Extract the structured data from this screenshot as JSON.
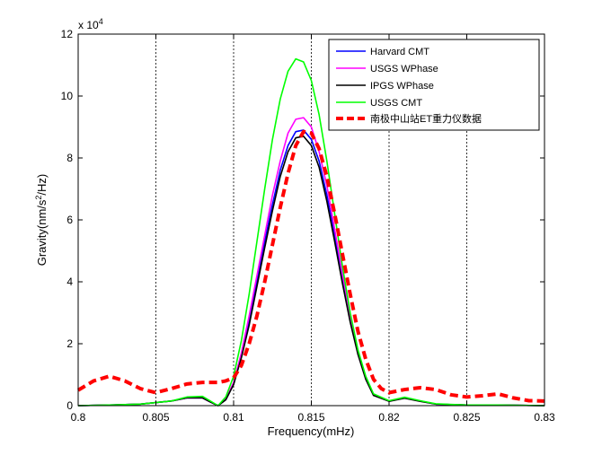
{
  "chart_data": {
    "type": "line",
    "title": "",
    "xlabel": "Frequency(mHz)",
    "ylabel_main": "Gravity(nm/s",
    "ylabel_sup": "2",
    "ylabel_tail": "/Hz)",
    "xlim": [
      0.8,
      0.83
    ],
    "ylim": [
      0,
      120000
    ],
    "x_ticks": [
      0.8,
      0.805,
      0.81,
      0.815,
      0.82,
      0.825,
      0.83
    ],
    "x_tick_labels": [
      "0.8",
      "0.805",
      "0.81",
      "0.815",
      "0.82",
      "0.825",
      "0.83"
    ],
    "y_ticks": [
      0,
      20000,
      40000,
      60000,
      80000,
      100000,
      120000
    ],
    "y_tick_labels": [
      "0",
      "2",
      "4",
      "6",
      "8",
      "10",
      "12"
    ],
    "y_multiplier_base": "x 10",
    "y_multiplier_exp": "4",
    "vertical_dotted_lines": [
      0.805,
      0.81,
      0.815,
      0.82,
      0.825
    ],
    "legend_position": "top-right",
    "series": [
      {
        "name": "Harvard CMT",
        "color": "#0000ff",
        "style": "solid",
        "x": [
          0.8,
          0.802,
          0.804,
          0.806,
          0.807,
          0.808,
          0.8085,
          0.809,
          0.8095,
          0.81,
          0.8105,
          0.811,
          0.8115,
          0.812,
          0.8125,
          0.813,
          0.8135,
          0.814,
          0.8145,
          0.815,
          0.8155,
          0.816,
          0.8165,
          0.817,
          0.8175,
          0.818,
          0.8185,
          0.819,
          0.82,
          0.821,
          0.822,
          0.823,
          0.825,
          0.827,
          0.83
        ],
        "y": [
          0,
          200,
          500,
          1500,
          2500,
          2500,
          1200,
          0,
          2000,
          7000,
          16000,
          27000,
          40000,
          53000,
          65000,
          76000,
          84000,
          88500,
          89000,
          86000,
          79000,
          68000,
          55000,
          41000,
          28000,
          17000,
          9000,
          3500,
          1500,
          2500,
          1500,
          500,
          200,
          200,
          0
        ]
      },
      {
        "name": "USGS WPhase",
        "color": "#ff00ff",
        "style": "solid",
        "x": [
          0.8,
          0.802,
          0.804,
          0.806,
          0.807,
          0.808,
          0.8085,
          0.809,
          0.8095,
          0.81,
          0.8105,
          0.811,
          0.8115,
          0.812,
          0.8125,
          0.813,
          0.8135,
          0.814,
          0.8145,
          0.815,
          0.8155,
          0.816,
          0.8165,
          0.817,
          0.8175,
          0.818,
          0.8185,
          0.819,
          0.82,
          0.821,
          0.822,
          0.823,
          0.825,
          0.827,
          0.83
        ],
        "y": [
          0,
          200,
          500,
          1500,
          2500,
          2500,
          1200,
          0,
          2100,
          7500,
          17000,
          29000,
          42000,
          55000,
          68000,
          79000,
          88000,
          92500,
          93000,
          90000,
          82000,
          71000,
          57000,
          42500,
          29000,
          17500,
          9000,
          3500,
          1500,
          2500,
          1500,
          500,
          200,
          200,
          0
        ]
      },
      {
        "name": "IPGS WPhase",
        "color": "#000000",
        "style": "solid",
        "x": [
          0.8,
          0.802,
          0.804,
          0.806,
          0.807,
          0.808,
          0.8085,
          0.809,
          0.8095,
          0.81,
          0.8105,
          0.811,
          0.8115,
          0.812,
          0.8125,
          0.813,
          0.8135,
          0.814,
          0.8145,
          0.815,
          0.8155,
          0.816,
          0.8165,
          0.817,
          0.8175,
          0.818,
          0.8185,
          0.819,
          0.82,
          0.821,
          0.822,
          0.823,
          0.825,
          0.827,
          0.83
        ],
        "y": [
          0,
          200,
          500,
          1500,
          2500,
          2500,
          1200,
          0,
          1900,
          6800,
          15500,
          26000,
          38500,
          51000,
          63000,
          74000,
          82000,
          86500,
          87000,
          84000,
          77000,
          66000,
          53000,
          39500,
          27000,
          16500,
          8500,
          3300,
          1400,
          2400,
          1400,
          500,
          200,
          200,
          0
        ]
      },
      {
        "name": "USGS CMT",
        "color": "#00ff00",
        "style": "solid",
        "x": [
          0.8,
          0.802,
          0.804,
          0.806,
          0.807,
          0.808,
          0.8085,
          0.809,
          0.8095,
          0.81,
          0.8105,
          0.811,
          0.8115,
          0.812,
          0.8125,
          0.813,
          0.8135,
          0.814,
          0.8145,
          0.815,
          0.8155,
          0.816,
          0.8165,
          0.817,
          0.8175,
          0.818,
          0.8185,
          0.819,
          0.82,
          0.821,
          0.822,
          0.823,
          0.825,
          0.827,
          0.83
        ],
        "y": [
          0,
          200,
          500,
          1500,
          2800,
          3000,
          1500,
          0,
          2800,
          9500,
          21000,
          36000,
          53000,
          70000,
          86000,
          99000,
          108000,
          112000,
          111000,
          105000,
          94000,
          79000,
          62000,
          45000,
          30000,
          18000,
          9500,
          3800,
          1600,
          2700,
          1600,
          600,
          200,
          200,
          0
        ]
      },
      {
        "name": "南极中山站ET重力仪数据",
        "color": "#ff0000",
        "style": "dashed",
        "x": [
          0.8,
          0.801,
          0.802,
          0.803,
          0.804,
          0.805,
          0.806,
          0.807,
          0.808,
          0.809,
          0.8095,
          0.81,
          0.8105,
          0.811,
          0.8115,
          0.812,
          0.8125,
          0.813,
          0.8135,
          0.814,
          0.8145,
          0.815,
          0.8155,
          0.816,
          0.8165,
          0.817,
          0.8175,
          0.818,
          0.8185,
          0.819,
          0.8195,
          0.82,
          0.821,
          0.822,
          0.823,
          0.824,
          0.825,
          0.826,
          0.827,
          0.828,
          0.829,
          0.83
        ],
        "y": [
          5000,
          8000,
          9500,
          8000,
          5500,
          4200,
          5500,
          7000,
          7500,
          7500,
          8000,
          9000,
          13000,
          20000,
          29000,
          40000,
          52000,
          64000,
          75000,
          84000,
          88500,
          88000,
          83000,
          74000,
          62000,
          49000,
          36000,
          24000,
          15000,
          8500,
          5500,
          4200,
          5200,
          5800,
          5200,
          3500,
          2800,
          3200,
          3800,
          2500,
          1600,
          1500
        ]
      }
    ]
  }
}
